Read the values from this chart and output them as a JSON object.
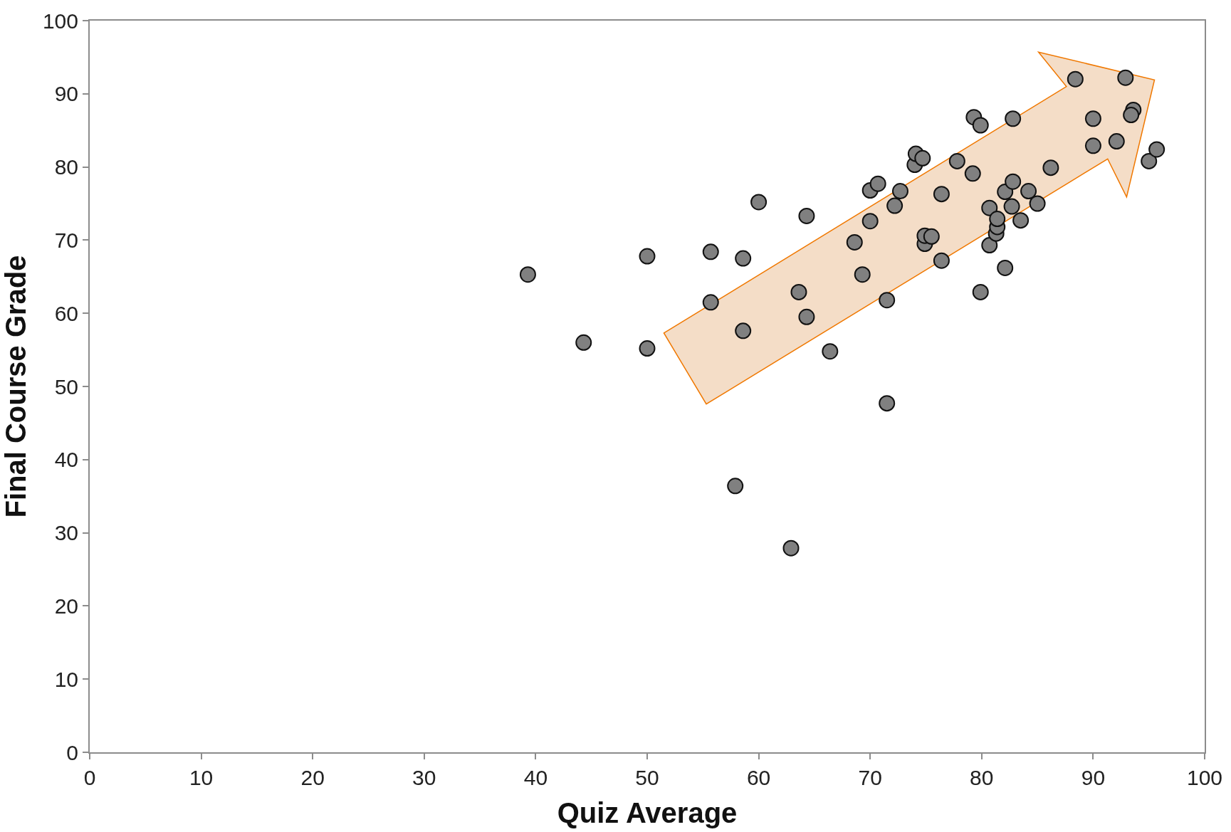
{
  "chart_data": {
    "type": "scatter",
    "xlabel": "Quiz Average",
    "ylabel": "Final Course Grade",
    "xlim": [
      0,
      100
    ],
    "ylim": [
      0,
      100
    ],
    "xticks": [
      0,
      10,
      20,
      30,
      40,
      50,
      60,
      70,
      80,
      90,
      100
    ],
    "yticks": [
      0,
      10,
      20,
      30,
      40,
      50,
      60,
      70,
      80,
      90,
      100
    ],
    "grid": false,
    "marker": "circle",
    "series": [
      {
        "color": "#808080",
        "x": [
          39.3,
          44.3,
          50,
          50,
          55.7,
          55.7,
          58.6,
          58.6,
          57.9,
          60,
          62.9,
          63.6,
          64.3,
          64.3,
          66.4,
          68.6,
          69.3,
          70,
          70.7,
          70,
          71.5,
          71.5,
          72.2,
          72.7,
          74,
          74.1,
          74.7,
          74.9,
          74.9,
          75.5,
          76.4,
          76.4,
          77.8,
          79.3,
          79.9,
          79.2,
          79.9,
          80.7,
          80.7,
          81.3,
          81.4,
          81.4,
          82.1,
          82.1,
          82.8,
          82.8,
          82.7,
          83.5,
          84.2,
          85,
          86.2,
          88.4,
          90,
          90,
          92.1,
          92.9,
          93.6,
          93.4,
          95,
          95.7
        ],
        "values": [
          65.3,
          56,
          67.8,
          55.2,
          68.4,
          61.5,
          67.5,
          57.6,
          36.4,
          75.2,
          27.9,
          62.9,
          73.3,
          59.5,
          54.8,
          69.7,
          65.3,
          76.8,
          77.7,
          72.6,
          61.8,
          47.7,
          74.7,
          76.7,
          80.3,
          81.8,
          81.2,
          69.5,
          70.6,
          70.5,
          67.2,
          76.3,
          80.8,
          86.8,
          85.7,
          79.1,
          62.9,
          69.3,
          74.4,
          70.9,
          71.8,
          72.9,
          66.2,
          76.6,
          78,
          86.6,
          74.6,
          72.7,
          76.7,
          75,
          79.9,
          92,
          86.6,
          82.9,
          83.5,
          92.2,
          87.8,
          87.1,
          80.8,
          82.4
        ]
      }
    ]
  }
}
